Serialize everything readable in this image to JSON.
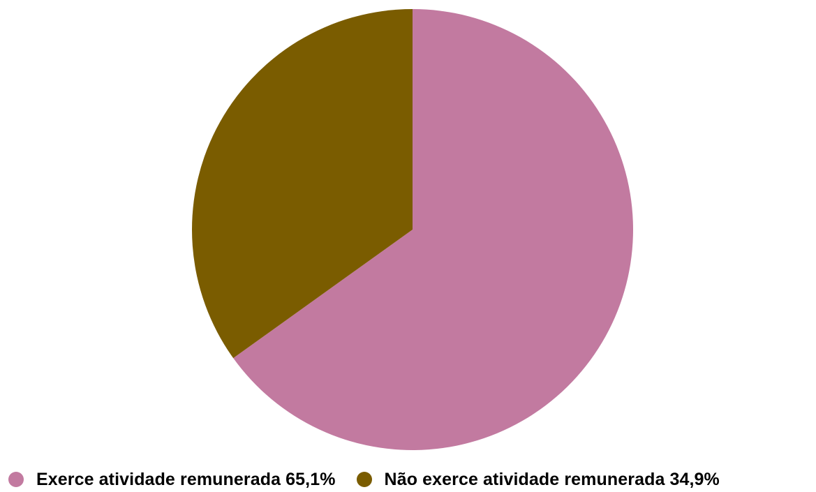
{
  "chart_data": {
    "type": "pie",
    "title": "",
    "legend_position": "bottom-left",
    "slices": [
      {
        "label": "Exerce atividade remunerada",
        "value": 65.1,
        "value_label": "65,1%",
        "color": "#c27aa0"
      },
      {
        "label": "Não exerce atividade remunerada",
        "value": 34.9,
        "value_label": "34,9%",
        "color": "#7a5c00"
      }
    ]
  }
}
